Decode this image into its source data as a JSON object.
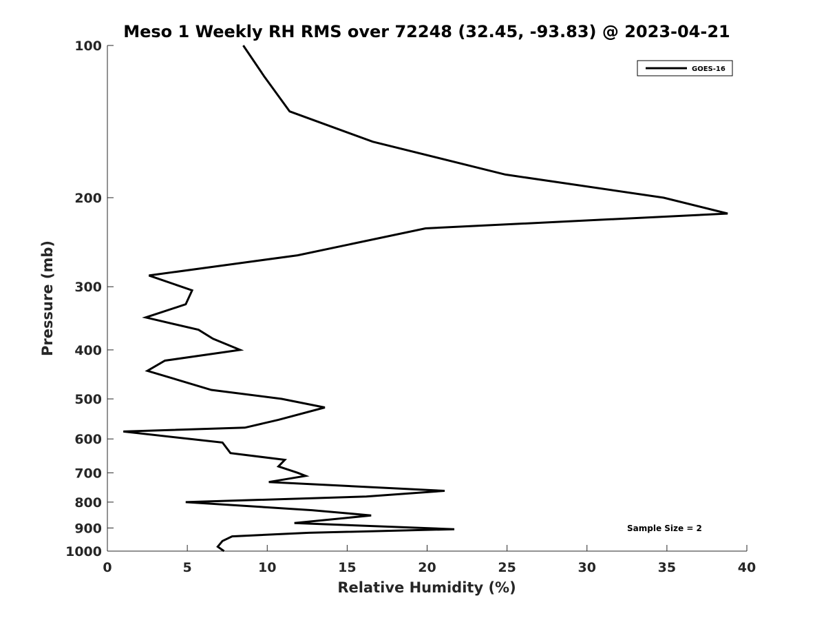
{
  "chart_data": {
    "type": "line",
    "title": "Meso 1 Weekly RH RMS over 72248 (32.45, -93.83) @ 2023-04-21",
    "xlabel": "Relative Humidity (%)",
    "ylabel": "Pressure (mb)",
    "xlim": [
      0,
      40
    ],
    "ylim": [
      100,
      1000
    ],
    "y_scale": "log",
    "y_reversed": true,
    "x_ticks": [
      0,
      5,
      10,
      15,
      20,
      25,
      30,
      35,
      40
    ],
    "y_ticks": [
      100,
      200,
      300,
      400,
      500,
      600,
      700,
      800,
      900,
      1000
    ],
    "x_tick_labels": [
      "0",
      "5",
      "10",
      "15",
      "20",
      "25",
      "30",
      "35",
      "40"
    ],
    "y_tick_labels": [
      "100",
      "200",
      "300",
      "400",
      "500",
      "600",
      "700",
      "800",
      "900",
      "1000"
    ],
    "grid": false,
    "legend_position": "top-right",
    "series": [
      {
        "name": "GOES-16",
        "color": "#000000",
        "x": [
          8.5,
          9.8,
          11.4,
          16.6,
          24.9,
          34.8,
          38.8,
          19.9,
          11.9,
          2.6,
          5.3,
          4.9,
          2.4,
          5.7,
          6.6,
          8.3,
          3.6,
          2.5,
          6.5,
          10.9,
          13.6,
          10.7,
          8.6,
          1.0,
          7.2,
          7.7,
          11.1,
          10.7,
          11.9,
          12.4,
          10.1,
          21.1,
          16.2,
          4.9,
          12.8,
          16.5,
          11.7,
          21.7,
          12.6,
          7.8,
          7.2,
          6.9,
          7.3
        ],
        "y": [
          100,
          115,
          135,
          155,
          180,
          200,
          215,
          230,
          260,
          285,
          305,
          325,
          345,
          365,
          380,
          400,
          420,
          440,
          480,
          500,
          520,
          550,
          570,
          580,
          610,
          640,
          660,
          680,
          700,
          710,
          730,
          760,
          780,
          800,
          830,
          850,
          880,
          905,
          920,
          935,
          955,
          980,
          1000
        ]
      }
    ],
    "annotations": [
      {
        "text": "Sample Size = 2",
        "position": "bottom-right"
      }
    ]
  }
}
